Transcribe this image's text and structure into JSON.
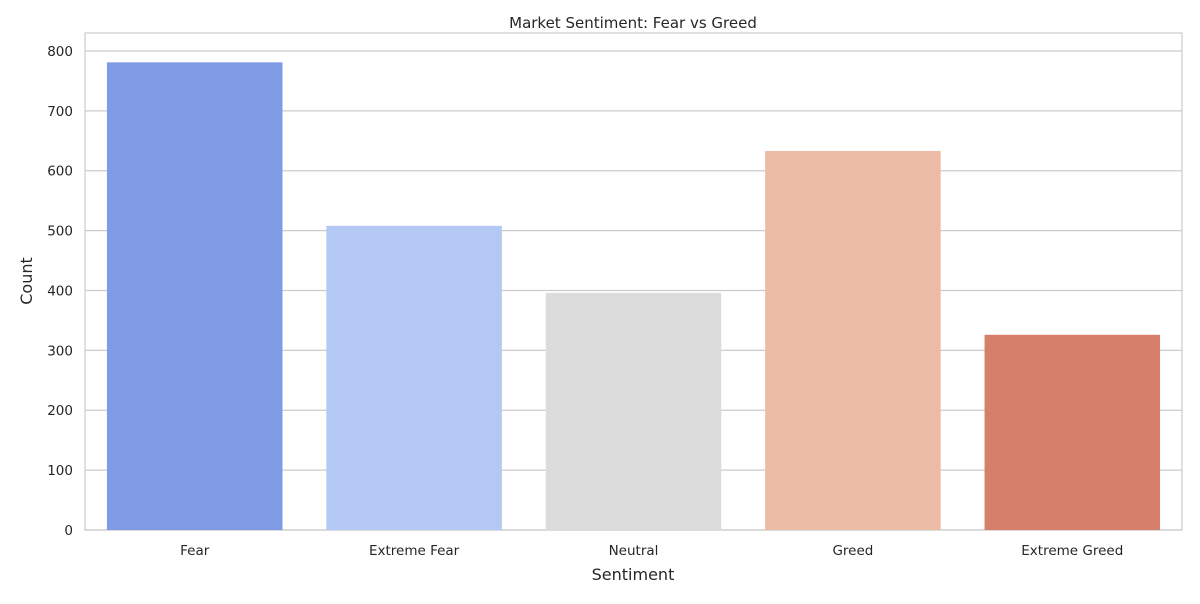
{
  "chart_data": {
    "type": "bar",
    "title": "Market Sentiment: Fear vs Greed",
    "xlabel": "Sentiment",
    "ylabel": "Count",
    "categories": [
      "Fear",
      "Extreme Fear",
      "Neutral",
      "Greed",
      "Extreme Greed"
    ],
    "values": [
      781,
      508,
      396,
      633,
      326
    ],
    "colors": [
      "#7f9be5",
      "#b4c8f4",
      "#dcdcdc",
      "#ecbba5",
      "#d6806b"
    ],
    "ylim": [
      0,
      830
    ],
    "yticks": [
      0,
      100,
      200,
      300,
      400,
      500,
      600,
      700,
      800
    ],
    "grid": true,
    "legend": "none"
  }
}
